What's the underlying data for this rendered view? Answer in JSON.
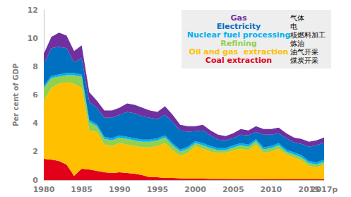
{
  "chart_data": {
    "type": "area",
    "stacked": true,
    "grid": false,
    "legend": "upper right",
    "y_label": "Per cent of GDP",
    "categories": [
      "1980",
      null,
      null,
      null,
      null,
      "1985",
      null,
      null,
      null,
      null,
      "1990",
      null,
      null,
      null,
      null,
      "1995",
      null,
      null,
      null,
      null,
      "2000",
      null,
      null,
      null,
      null,
      "2005",
      null,
      null,
      null,
      null,
      "2010",
      null,
      null,
      null,
      null,
      "2015",
      null,
      "2017p"
    ],
    "ylim": [
      0,
      12
    ],
    "yticks": [
      0,
      2,
      4,
      6,
      8,
      10,
      12
    ],
    "series": [
      {
        "name": "Coal extraction",
        "label_zh": "煤炭开采",
        "color": "#e3001b",
        "values": [
          1.5,
          1.45,
          1.35,
          1.1,
          0.3,
          0.8,
          0.75,
          0.65,
          0.55,
          0.5,
          0.55,
          0.5,
          0.45,
          0.35,
          0.2,
          0.2,
          0.15,
          0.15,
          0.12,
          0.1,
          0.1,
          0.1,
          0.08,
          0.07,
          0.07,
          0.06,
          0.06,
          0.06,
          0.06,
          0.05,
          0.05,
          0.05,
          0.05,
          0.05,
          0.05,
          0.05,
          0.05,
          0.05
        ]
      },
      {
        "name": "Oil and gas  extraction",
        "label_zh": "油气开采",
        "color": "#ffc000",
        "values": [
          4.1,
          5.05,
          5.45,
          5.8,
          6.5,
          5.7,
          2.75,
          2.75,
          1.95,
          1.9,
          2.05,
          2.0,
          1.95,
          1.95,
          2.1,
          2.2,
          2.45,
          1.95,
          1.58,
          1.8,
          2.3,
          2.1,
          1.92,
          1.83,
          1.83,
          2.04,
          2.14,
          2.04,
          2.44,
          1.85,
          1.95,
          2.15,
          1.75,
          1.55,
          1.35,
          0.95,
          0.85,
          1.05
        ]
      },
      {
        "name": "Refining",
        "label_zh": "炼油",
        "color": "#92d050",
        "values": [
          0.9,
          0.7,
          0.5,
          0.5,
          0.6,
          0.8,
          0.6,
          0.4,
          0.4,
          0.4,
          0.4,
          0.4,
          0.4,
          0.4,
          0.4,
          0.4,
          0.4,
          0.35,
          0.3,
          0.3,
          0.2,
          0.25,
          0.25,
          0.2,
          0.2,
          0.2,
          0.25,
          0.25,
          0.25,
          0.25,
          0.25,
          0.25,
          0.2,
          0.2,
          0.2,
          0.2,
          0.2,
          0.2
        ]
      },
      {
        "name": "Nuclear fuel processing",
        "label_zh": "核燃料加工",
        "color": "#00b0f0",
        "values": [
          0.15,
          0.15,
          0.15,
          0.15,
          0.15,
          0.15,
          0.15,
          0.15,
          0.15,
          0.15,
          0.15,
          0.15,
          0.15,
          0.15,
          0.15,
          0.15,
          0.15,
          0.15,
          0.15,
          0.15,
          0.15,
          0.15,
          0.15,
          0.15,
          0.15,
          0.15,
          0.15,
          0.15,
          0.15,
          0.15,
          0.15,
          0.15,
          0.15,
          0.15,
          0.15,
          0.15,
          0.15,
          0.15
        ]
      },
      {
        "name": "Electricity",
        "label_zh": "电",
        "color": "#0070c0",
        "values": [
          1.55,
          1.95,
          1.95,
          1.75,
          0.75,
          1.15,
          1.25,
          1.15,
          1.35,
          1.45,
          1.45,
          1.75,
          1.75,
          1.65,
          1.55,
          1.35,
          1.45,
          1.5,
          1.35,
          1.05,
          0.7,
          0.9,
          0.75,
          0.6,
          0.55,
          0.5,
          0.6,
          0.65,
          0.5,
          0.9,
          0.8,
          0.7,
          0.8,
          0.7,
          0.8,
          1.0,
          1.2,
          1.2
        ]
      },
      {
        "name": "Gas",
        "label_zh": "气体",
        "color": "#7030a0",
        "values": [
          0.7,
          0.8,
          1.0,
          0.9,
          0.8,
          0.9,
          0.7,
          0.5,
          0.5,
          0.5,
          0.5,
          0.6,
          0.6,
          0.6,
          0.5,
          0.5,
          0.6,
          0.5,
          0.4,
          0.4,
          0.35,
          0.4,
          0.35,
          0.35,
          0.3,
          0.35,
          0.4,
          0.35,
          0.4,
          0.4,
          0.4,
          0.4,
          0.35,
          0.35,
          0.35,
          0.35,
          0.35,
          0.35
        ]
      }
    ]
  }
}
